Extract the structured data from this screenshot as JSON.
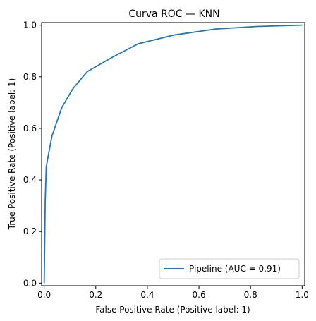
{
  "chart_data": {
    "type": "line",
    "title": "Curva ROC — KNN",
    "xlabel": "False Positive Rate (Positive label: 1)",
    "ylabel": "True Positive Rate (Positive label: 1)",
    "xlim": [
      -0.01,
      1.01
    ],
    "ylim": [
      -0.01,
      1.01
    ],
    "xticks": [
      0.0,
      0.2,
      0.4,
      0.6,
      0.8,
      1.0
    ],
    "yticks": [
      0.0,
      0.2,
      0.4,
      0.6,
      0.8,
      1.0
    ],
    "xtick_labels": [
      "0.0",
      "0.2",
      "0.4",
      "0.6",
      "0.8",
      "1.0"
    ],
    "ytick_labels": [
      "0.0",
      "0.2",
      "0.4",
      "0.6",
      "0.8",
      "1.0"
    ],
    "grid": false,
    "legend_position": "bottom-right",
    "series": [
      {
        "name": "Pipeline (AUC = 0.91)",
        "color": "#1f77b4",
        "x": [
          0.0,
          0.004,
          0.008,
          0.015,
          0.03,
          0.068,
          0.11,
          0.167,
          0.265,
          0.365,
          0.505,
          0.665,
          0.825,
          1.0
        ],
        "y": [
          0.0,
          0.32,
          0.45,
          0.49,
          0.57,
          0.68,
          0.752,
          0.82,
          0.876,
          0.928,
          0.962,
          0.985,
          0.995,
          1.0
        ]
      }
    ]
  }
}
